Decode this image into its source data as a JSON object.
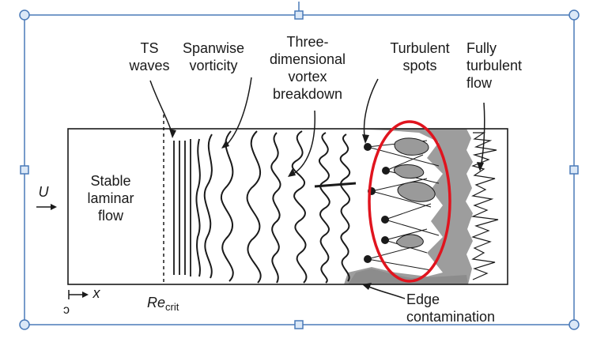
{
  "labels": {
    "ts_waves": [
      "TS",
      "waves"
    ],
    "spanwise": [
      "Spanwise",
      "vorticity"
    ],
    "three_d": [
      "Three-",
      "dimensional",
      "vortex",
      "breakdown"
    ],
    "turbulent_spots": [
      "Turbulent",
      "spots"
    ],
    "fully_turbulent": [
      "Fully",
      "turbulent",
      "flow"
    ],
    "stable_laminar": [
      "Stable",
      "laminar",
      "flow"
    ],
    "U": "U",
    "x": "x",
    "re_main": "Re",
    "re_sub": "crit",
    "edge_contamination": [
      "Edge",
      "contamination"
    ],
    "corner_mark": "ɔ"
  },
  "colors": {
    "frame": "#4a7ab8",
    "handle_fill": "#dbe8f7",
    "ink": "#1a1a1a",
    "ellipse": "#e0141e",
    "turbulent_fill": "#8c8c8c",
    "spot_fill": "#9a9a9a"
  },
  "icons": {
    "arrow_u": "right-arrow",
    "arrow_x": "right-arrow"
  }
}
